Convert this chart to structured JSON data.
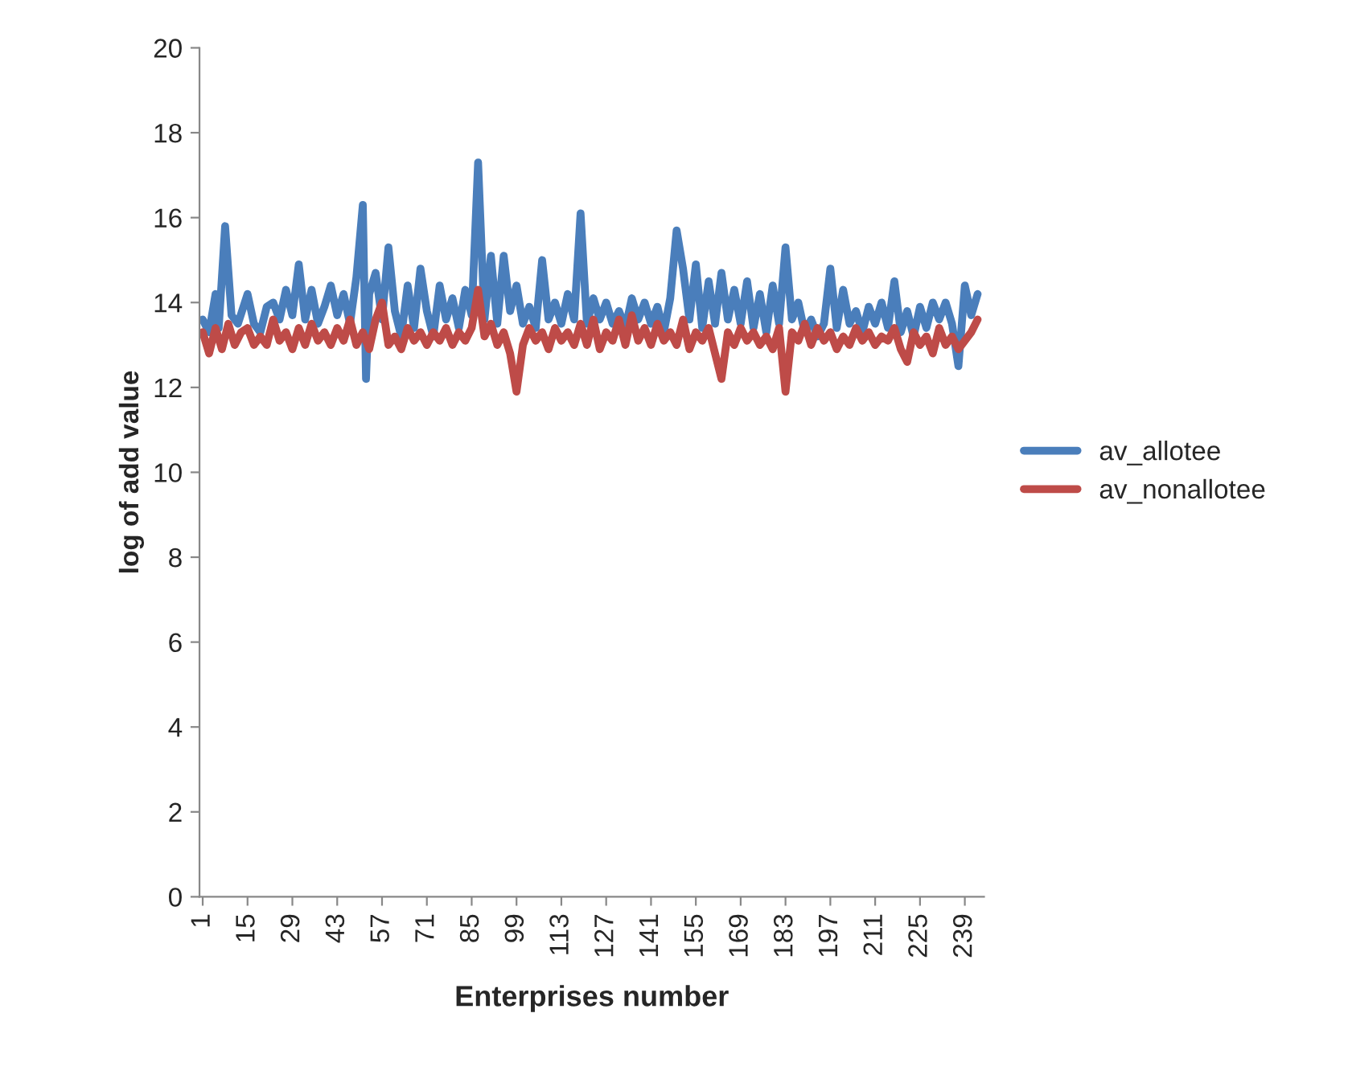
{
  "chart_data": {
    "type": "line",
    "xlabel": "Enterprises number",
    "ylabel": "log of add value",
    "xlim": [
      0,
      245
    ],
    "xticks": [
      1,
      15,
      29,
      43,
      57,
      71,
      85,
      99,
      113,
      127,
      141,
      155,
      169,
      183,
      197,
      211,
      225,
      239
    ],
    "ylim": [
      0,
      20
    ],
    "yticks": [
      0,
      2,
      4,
      6,
      8,
      10,
      12,
      14,
      16,
      18,
      20
    ],
    "grid": false,
    "legend": "right",
    "marker": "none",
    "line_style": "solid",
    "series": [
      {
        "name": "av_allotee",
        "color": "#4a7ebb",
        "x": [
          1,
          3,
          5,
          6,
          8,
          10,
          12,
          15,
          17,
          19,
          21,
          23,
          25,
          27,
          29,
          31,
          33,
          35,
          37,
          39,
          41,
          43,
          45,
          47,
          49,
          51,
          52,
          53,
          55,
          57,
          59,
          61,
          63,
          65,
          67,
          69,
          71,
          73,
          75,
          77,
          79,
          81,
          83,
          85,
          87,
          89,
          91,
          93,
          95,
          97,
          99,
          101,
          103,
          105,
          107,
          109,
          111,
          113,
          115,
          117,
          119,
          121,
          123,
          125,
          127,
          129,
          131,
          133,
          135,
          137,
          139,
          141,
          143,
          145,
          147,
          149,
          151,
          153,
          155,
          157,
          159,
          161,
          163,
          165,
          167,
          169,
          171,
          173,
          175,
          177,
          179,
          181,
          183,
          185,
          187,
          189,
          191,
          193,
          195,
          197,
          199,
          201,
          203,
          205,
          207,
          209,
          211,
          213,
          215,
          217,
          219,
          221,
          223,
          225,
          227,
          229,
          231,
          233,
          235,
          237,
          239,
          241,
          243
        ],
        "values": [
          13.6,
          13.3,
          14.2,
          13.4,
          15.8,
          13.7,
          13.5,
          14.2,
          13.5,
          13.3,
          13.9,
          14.0,
          13.6,
          14.3,
          13.7,
          14.9,
          13.6,
          14.3,
          13.5,
          13.9,
          14.4,
          13.7,
          14.2,
          13.5,
          14.6,
          16.3,
          12.2,
          14.2,
          14.7,
          13.6,
          15.3,
          13.8,
          13.2,
          14.4,
          13.4,
          14.8,
          13.8,
          13.2,
          14.4,
          13.6,
          14.1,
          13.4,
          14.3,
          13.7,
          17.3,
          13.6,
          15.1,
          13.5,
          15.1,
          13.8,
          14.4,
          13.5,
          13.9,
          13.4,
          15.0,
          13.6,
          14.0,
          13.5,
          14.2,
          13.6,
          16.1,
          13.5,
          14.1,
          13.6,
          14.0,
          13.5,
          13.8,
          13.4,
          14.1,
          13.6,
          14.0,
          13.5,
          13.9,
          13.3,
          14.1,
          15.7,
          14.8,
          13.6,
          14.9,
          13.4,
          14.5,
          13.5,
          14.7,
          13.6,
          14.3,
          13.5,
          14.5,
          13.4,
          14.2,
          13.3,
          14.4,
          13.5,
          15.3,
          13.6,
          14.0,
          13.3,
          13.6,
          13.2,
          13.5,
          14.8,
          13.4,
          14.3,
          13.5,
          13.8,
          13.3,
          13.9,
          13.5,
          14.0,
          13.4,
          14.5,
          13.3,
          13.8,
          13.2,
          13.9,
          13.4,
          14.0,
          13.6,
          14.0,
          13.5,
          12.5,
          14.4,
          13.7,
          14.2
        ]
      },
      {
        "name": "av_nonallotee",
        "color": "#be4b48",
        "x": [
          1,
          3,
          5,
          7,
          9,
          11,
          13,
          15,
          17,
          19,
          21,
          23,
          25,
          27,
          29,
          31,
          33,
          35,
          37,
          39,
          41,
          43,
          45,
          47,
          49,
          51,
          53,
          55,
          57,
          59,
          61,
          63,
          65,
          67,
          69,
          71,
          73,
          75,
          77,
          79,
          81,
          83,
          85,
          87,
          89,
          91,
          93,
          95,
          97,
          99,
          101,
          103,
          105,
          107,
          109,
          111,
          113,
          115,
          117,
          119,
          121,
          123,
          125,
          127,
          129,
          131,
          133,
          135,
          137,
          139,
          141,
          143,
          145,
          147,
          149,
          151,
          153,
          155,
          157,
          159,
          161,
          163,
          165,
          167,
          169,
          171,
          173,
          175,
          177,
          179,
          181,
          183,
          185,
          187,
          189,
          191,
          193,
          195,
          197,
          199,
          201,
          203,
          205,
          207,
          209,
          211,
          213,
          215,
          217,
          219,
          221,
          223,
          225,
          227,
          229,
          231,
          233,
          235,
          237,
          239,
          241,
          243
        ],
        "values": [
          13.3,
          12.8,
          13.4,
          12.9,
          13.5,
          13.0,
          13.3,
          13.4,
          13.0,
          13.2,
          13.0,
          13.6,
          13.1,
          13.3,
          12.9,
          13.4,
          13.0,
          13.5,
          13.1,
          13.3,
          13.0,
          13.4,
          13.1,
          13.6,
          13.0,
          13.3,
          12.9,
          13.6,
          14.0,
          13.0,
          13.2,
          12.9,
          13.4,
          13.1,
          13.3,
          13.0,
          13.3,
          13.1,
          13.4,
          13.0,
          13.3,
          13.1,
          13.4,
          14.3,
          13.2,
          13.5,
          13.0,
          13.3,
          12.8,
          11.9,
          13.0,
          13.4,
          13.1,
          13.3,
          12.9,
          13.4,
          13.1,
          13.3,
          13.0,
          13.5,
          13.0,
          13.6,
          12.9,
          13.3,
          13.1,
          13.6,
          13.0,
          13.7,
          13.1,
          13.4,
          13.0,
          13.5,
          13.1,
          13.3,
          13.0,
          13.6,
          12.9,
          13.3,
          13.1,
          13.4,
          12.8,
          12.2,
          13.3,
          13.0,
          13.4,
          13.1,
          13.3,
          13.0,
          13.2,
          12.9,
          13.4,
          11.9,
          13.3,
          13.1,
          13.5,
          13.0,
          13.4,
          13.1,
          13.3,
          12.9,
          13.2,
          13.0,
          13.4,
          13.1,
          13.3,
          13.0,
          13.2,
          13.1,
          13.4,
          12.9,
          12.6,
          13.3,
          13.0,
          13.2,
          12.8,
          13.4,
          13.0,
          13.2,
          12.9,
          13.1,
          13.3,
          13.6
        ]
      }
    ]
  }
}
